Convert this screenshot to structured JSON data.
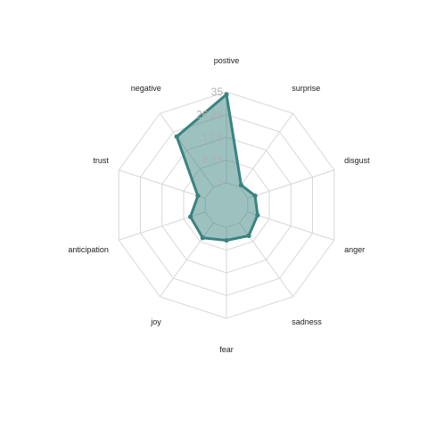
{
  "chart_data": {
    "type": "radar",
    "axes": [
      "postive",
      "surprise",
      "disgust",
      "anger",
      "sadness",
      "fear",
      "joy",
      "anticipation",
      "trust",
      "negative"
    ],
    "series": [
      {
        "values": [
          34,
          1,
          3,
          4,
          6,
          5,
          7,
          6,
          3,
          24
        ]
      }
    ],
    "rlim": [
      0,
      35
    ],
    "ticks": [
      0,
      8.75,
      17.5,
      26.25,
      35
    ],
    "tick_labels": [
      "0",
      "8.75",
      "17.5",
      "26.25",
      "35"
    ],
    "grid": true,
    "legend": "none",
    "colors": {
      "series": "#3a8380",
      "grid": "#d7d7d7",
      "tick_label": "#b0b0b0"
    }
  }
}
